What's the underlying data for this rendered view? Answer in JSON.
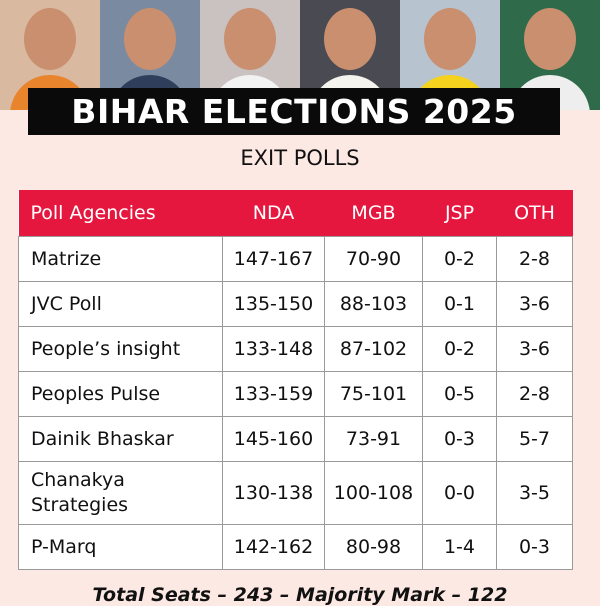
{
  "header": {
    "title": "BIHAR ELECTIONS 2025",
    "subtitle": "EXIT POLLS"
  },
  "table": {
    "columns": [
      "Poll Agencies",
      "NDA",
      "MGB",
      "JSP",
      "OTH"
    ],
    "rows": [
      [
        "Matrize",
        "147-167",
        "70-90",
        "0-2",
        "2-8"
      ],
      [
        "JVC Poll",
        "135-150",
        "88-103",
        "0-1",
        "3-6"
      ],
      [
        "People’s insight",
        "133-148",
        "87-102",
        "0-2",
        "3-6"
      ],
      [
        "Peoples Pulse",
        "133-159",
        "75-101",
        "0-5",
        "2-8"
      ],
      [
        "Dainik Bhaskar",
        "145-160",
        "73-91",
        "0-3",
        "5-7"
      ],
      [
        "Chanakya Strategies",
        "130-138",
        "100-108",
        "0-0",
        "3-5"
      ],
      [
        "P-Marq",
        "142-162",
        "80-98",
        "1-4",
        "0-3"
      ]
    ]
  },
  "footer": "Total Seats – 243 – Majority Mark – 122"
}
